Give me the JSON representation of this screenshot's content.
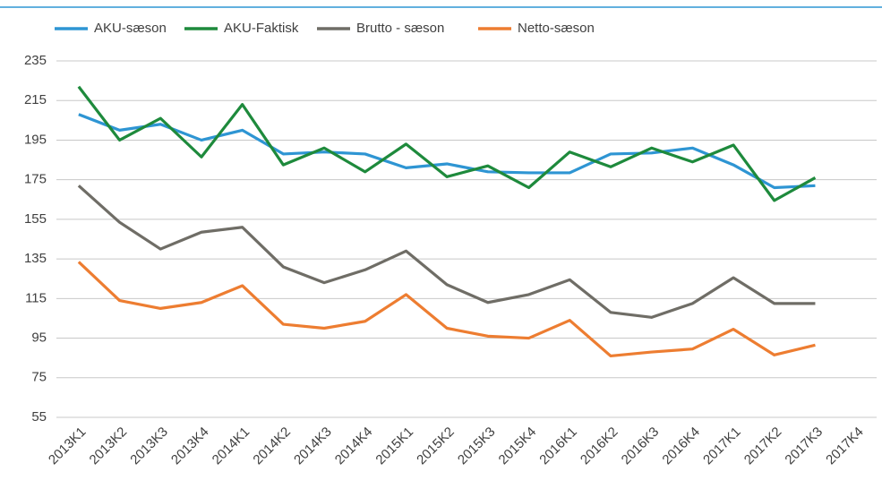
{
  "chart_data": {
    "type": "line",
    "categories": [
      "2013K1",
      "2013K2",
      "2013K3",
      "2013K4",
      "2014K1",
      "2014K2",
      "2014K3",
      "2014K4",
      "2015K1",
      "2015K2",
      "2015K3",
      "2015K4",
      "2016K1",
      "2016K2",
      "2016K3",
      "2016K4",
      "2017K1",
      "2017K2",
      "2017K3",
      "2017K4"
    ],
    "series": [
      {
        "name": "AKU-sæson",
        "color": "#2e95d3",
        "values": [
          208,
          200,
          203,
          195,
          200,
          188,
          189,
          188,
          181,
          183,
          179,
          178.5,
          178.5,
          188,
          188.5,
          191,
          182.5,
          171,
          172,
          null
        ]
      },
      {
        "name": "AKU-Faktisk",
        "color": "#1e8a3c",
        "values": [
          222,
          195,
          206,
          186.5,
          213,
          182.5,
          191,
          179,
          193,
          176.5,
          182,
          171,
          189,
          181.5,
          191,
          184,
          192.5,
          164.5,
          176,
          null
        ]
      },
      {
        "name": "Brutto - sæson",
        "color": "#6f6d66",
        "values": [
          172,
          153.5,
          140,
          148.5,
          151,
          131,
          123,
          129.5,
          139,
          122,
          113,
          117,
          124.5,
          108,
          105.5,
          112.5,
          125.5,
          112.5,
          112.5,
          null
        ]
      },
      {
        "name": "Netto-sæson",
        "color": "#ed7d31",
        "values": [
          133.5,
          114,
          110,
          113,
          121.5,
          102,
          100,
          103.5,
          117,
          100,
          96,
          95,
          104,
          86,
          88,
          89.5,
          99.5,
          86.5,
          91.5,
          null
        ]
      }
    ],
    "ylim": [
      55,
      235
    ],
    "yticks": [
      55,
      75,
      95,
      115,
      135,
      155,
      175,
      195,
      215,
      235
    ],
    "grid": true
  }
}
